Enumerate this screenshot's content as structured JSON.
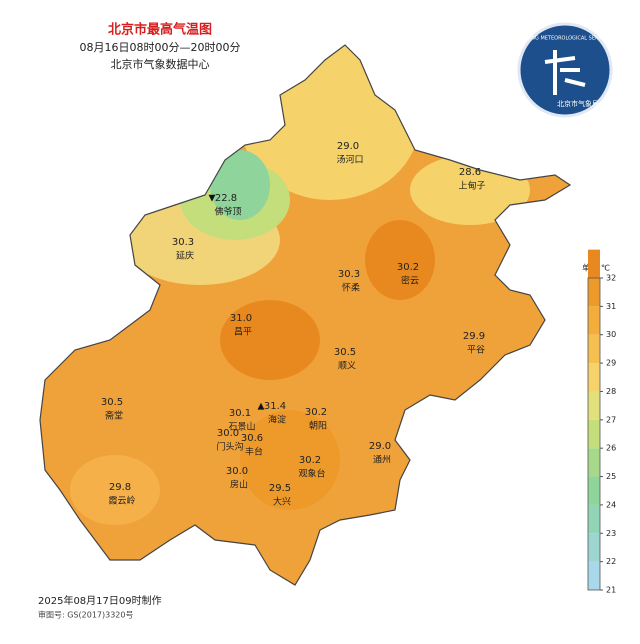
{
  "header": {
    "title": "北京市最高气温图",
    "period": "08月16日08时00分—20时00分",
    "source": "北京市气象数据中心"
  },
  "logo": {
    "english": "BEIJING METEOROLOGICAL SERVICE",
    "chinese": "北京市气象局"
  },
  "legend": {
    "unit": "单位:℃",
    "ticks": [
      21,
      22,
      23,
      24,
      25,
      26,
      27,
      28,
      29,
      30,
      31,
      32
    ],
    "colors": [
      "#a8d8ea",
      "#9dd6d0",
      "#92d4b6",
      "#8fd49a",
      "#a6d98a",
      "#c4de7c",
      "#e2e07a",
      "#f6d36a",
      "#f5c050",
      "#f2ad3a",
      "#ee9a2a",
      "#e8891f"
    ]
  },
  "stations": [
    {
      "name": "汤河口",
      "value": "29.0"
    },
    {
      "name": "上甸子",
      "value": "28.6"
    },
    {
      "name": "佛爷顶",
      "value": "22.8",
      "mark": "▼"
    },
    {
      "name": "延庆",
      "value": "30.3"
    },
    {
      "name": "怀柔",
      "value": "30.3"
    },
    {
      "name": "密云",
      "value": "30.2"
    },
    {
      "name": "昌平",
      "value": "31.0"
    },
    {
      "name": "平谷",
      "value": "29.9"
    },
    {
      "name": "顺义",
      "value": "30.5"
    },
    {
      "name": "斋堂",
      "value": "30.5"
    },
    {
      "name": "海淀",
      "value": "31.4",
      "mark": "▲"
    },
    {
      "name": "石景山",
      "value": "30.1"
    },
    {
      "name": "门头沟",
      "value": "30.0"
    },
    {
      "name": "丰台",
      "value": "30.6"
    },
    {
      "name": "朝阳",
      "value": "30.2"
    },
    {
      "name": "观象台",
      "value": "30.2"
    },
    {
      "name": "通州",
      "value": "29.0"
    },
    {
      "name": "霞云岭",
      "value": "29.8"
    },
    {
      "name": "房山",
      "value": "30.0"
    },
    {
      "name": "大兴",
      "value": "29.5"
    }
  ],
  "footer": {
    "made": "2025年08月17日09时制作",
    "approval": "审图号: GS(2017)3320号"
  }
}
